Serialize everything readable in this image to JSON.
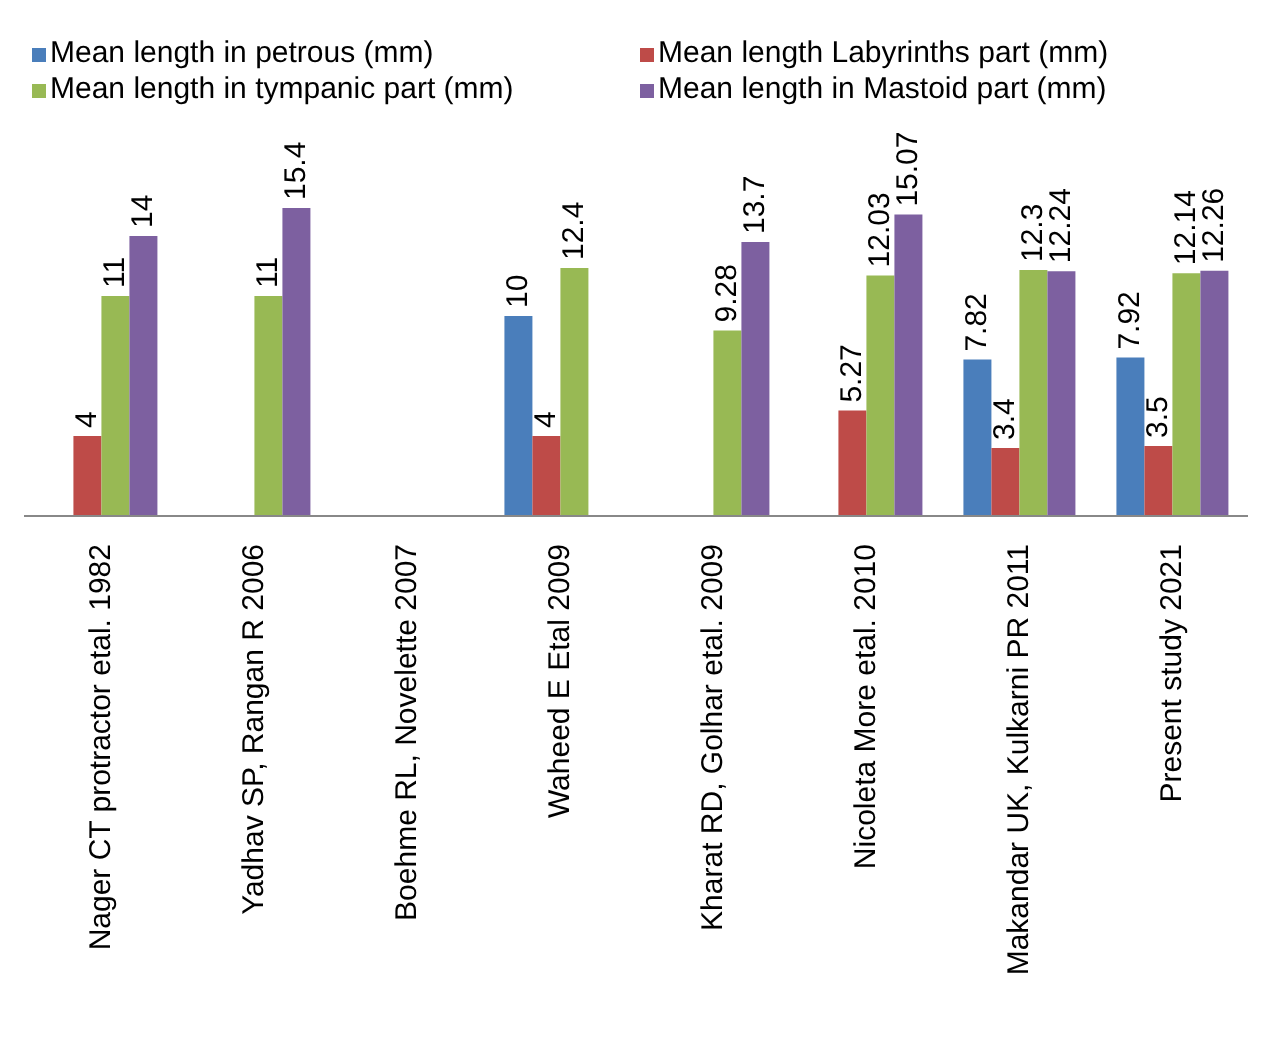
{
  "chart_data": {
    "type": "bar",
    "categories": [
      "Nager CT protractor etal. 1982",
      "Yadhav SP, Rangan R 2006",
      "Boehme RL, Novelette 2007",
      "Waheed E Etal 2009",
      "Kharat RD, Golhar etal. 2009",
      "Nicoleta More etal. 2010",
      "Makandar UK, Kulkarni PR 2011",
      "Present study 2021"
    ],
    "series": [
      {
        "name": "Mean length in petrous (mm)",
        "color": "#4a7ebb",
        "values": [
          null,
          null,
          null,
          10,
          null,
          null,
          7.82,
          7.92
        ]
      },
      {
        "name": "Mean length Labyrinths part (mm)",
        "color": "#be4b48",
        "values": [
          4,
          null,
          null,
          4,
          null,
          5.27,
          3.4,
          3.5
        ]
      },
      {
        "name": "Mean length in tympanic part (mm)",
        "color": "#98b954",
        "values": [
          11,
          11,
          null,
          12.4,
          9.28,
          12.03,
          12.3,
          12.14
        ]
      },
      {
        "name": "Mean length in Mastoid part (mm)",
        "color": "#7d60a0",
        "values": [
          14,
          15.4,
          null,
          null,
          13.7,
          15.07,
          12.24,
          12.26
        ]
      }
    ],
    "data_labels": true,
    "legend": "top",
    "grid": false
  }
}
